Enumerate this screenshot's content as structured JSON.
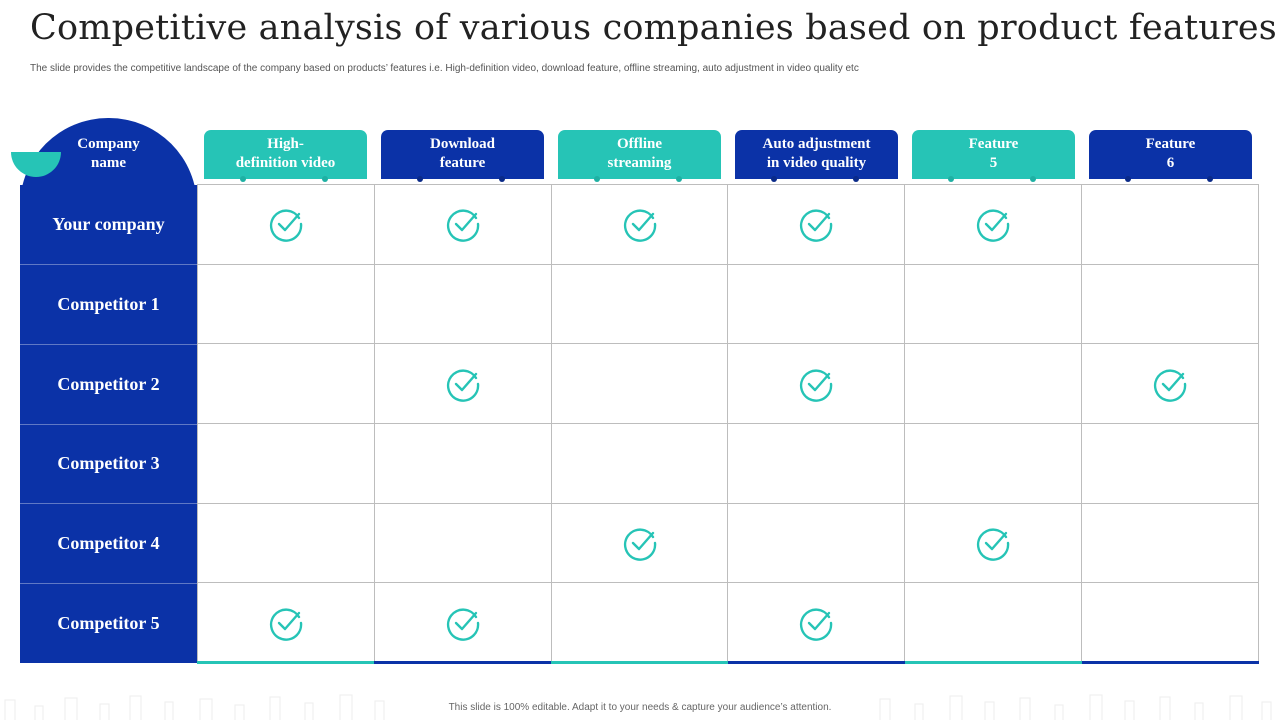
{
  "title": "Competitive analysis of various companies based on product features",
  "subtitle": "The slide provides the competitive landscape of the company based on products’ features i.e. High-definition video, download feature, offline streaming, auto adjustment in video quality etc",
  "company_header": [
    "Company",
    "name"
  ],
  "features": [
    {
      "lines": [
        "High-",
        "definition video"
      ],
      "color": "#26c4b6"
    },
    {
      "lines": [
        "Download",
        "feature"
      ],
      "color": "#0b32a7"
    },
    {
      "lines": [
        "Offline",
        "streaming"
      ],
      "color": "#26c4b6"
    },
    {
      "lines": [
        "Auto adjustment",
        "in video quality"
      ],
      "color": "#0b32a7"
    },
    {
      "lines": [
        "Feature",
        "5"
      ],
      "color": "#26c4b6"
    },
    {
      "lines": [
        "Feature",
        "6"
      ],
      "color": "#0b32a7"
    }
  ],
  "rows": [
    {
      "label": "Your company",
      "checks": [
        true,
        true,
        true,
        true,
        true,
        false
      ]
    },
    {
      "label": "Competitor 1",
      "checks": [
        false,
        false,
        false,
        false,
        false,
        false
      ]
    },
    {
      "label": "Competitor 2",
      "checks": [
        false,
        true,
        false,
        true,
        false,
        true
      ]
    },
    {
      "label": "Competitor 3",
      "checks": [
        false,
        false,
        false,
        false,
        false,
        false
      ]
    },
    {
      "label": "Competitor 4",
      "checks": [
        false,
        false,
        true,
        false,
        true,
        false
      ]
    },
    {
      "label": "Competitor 5",
      "checks": [
        true,
        true,
        false,
        true,
        false,
        false
      ]
    }
  ],
  "check_icon": "check-circle-icon",
  "colors": {
    "primary": "#0b32a7",
    "accent": "#26c4b6"
  },
  "footer": "This slide is 100% editable. Adapt it to your needs & capture your audience’s attention."
}
